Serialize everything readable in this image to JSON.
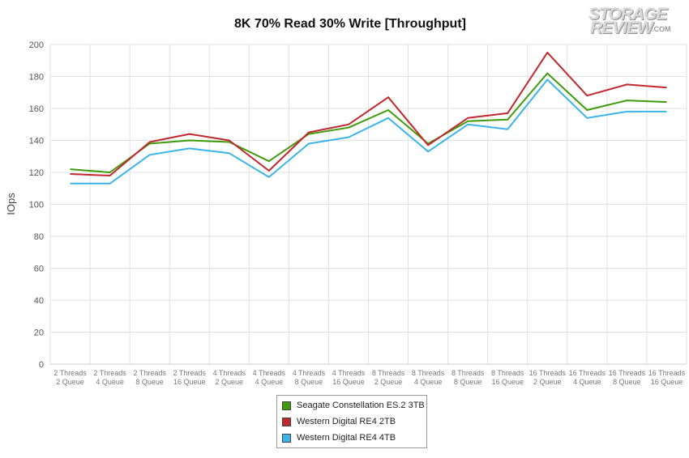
{
  "chart_data": {
    "type": "line",
    "title": "8K 70% Read 30% Write [Throughput]",
    "ylabel": "IOps",
    "xlabel": "",
    "ylim": [
      0,
      200
    ],
    "yticks": [
      0,
      20,
      40,
      60,
      80,
      100,
      120,
      140,
      160,
      180,
      200
    ],
    "grid": true,
    "legend_position": "bottom-center",
    "categories": [
      [
        "2 Threads",
        "2 Queue"
      ],
      [
        "2 Threads",
        "4 Queue"
      ],
      [
        "2 Threads",
        "8 Queue"
      ],
      [
        "2 Threads",
        "16 Queue"
      ],
      [
        "4 Threads",
        "2 Queue"
      ],
      [
        "4 Threads",
        "4 Queue"
      ],
      [
        "4 Threads",
        "8 Queue"
      ],
      [
        "4 Threads",
        "16 Queue"
      ],
      [
        "8 Threads",
        "2 Queue"
      ],
      [
        "8 Threads",
        "4 Queue"
      ],
      [
        "8 Threads",
        "8 Queue"
      ],
      [
        "8 Threads",
        "16 Queue"
      ],
      [
        "16 Threads",
        "2 Queue"
      ],
      [
        "16 Threads",
        "4 Queue"
      ],
      [
        "16 Threads",
        "8 Queue"
      ],
      [
        "16 Threads",
        "16 Queue"
      ]
    ],
    "series": [
      {
        "name": "Seagate Constellation ES.2 3TB",
        "color": "#3f9b0b",
        "values": [
          122,
          120,
          138,
          140,
          139,
          127,
          144,
          148,
          159,
          138,
          152,
          153,
          182,
          159,
          165,
          164
        ]
      },
      {
        "name": "Western Digital RE4 2TB",
        "color": "#c1272d",
        "values": [
          119,
          118,
          139,
          144,
          140,
          121,
          145,
          150,
          167,
          137,
          154,
          157,
          195,
          168,
          175,
          173
        ]
      },
      {
        "name": "Western Digital RE4 4TB",
        "color": "#3ab4ea",
        "values": [
          113,
          113,
          131,
          135,
          132,
          117,
          138,
          142,
          154,
          133,
          150,
          147,
          178,
          154,
          158,
          158
        ]
      }
    ]
  },
  "logo": {
    "line1": "STORAGE",
    "line2": "REVIEW",
    "suffix": ".COM"
  }
}
